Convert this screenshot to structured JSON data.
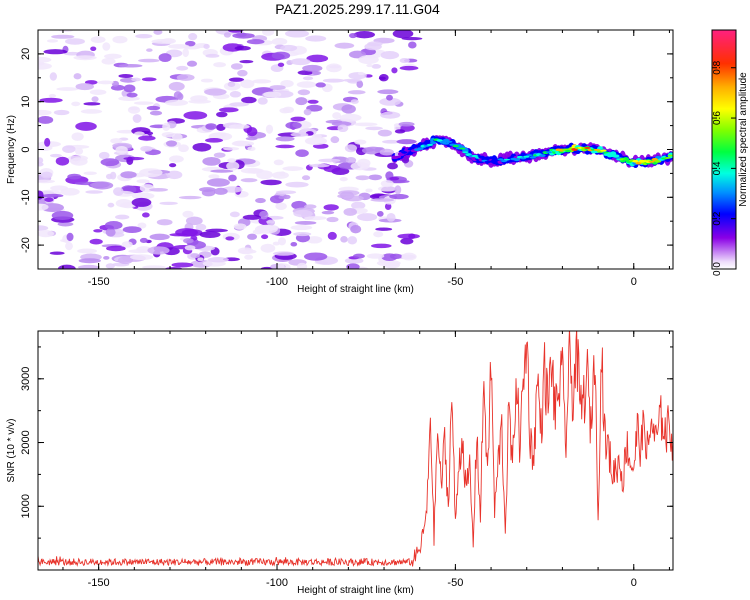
{
  "title": "PAZ1.2025.299.17.11.G04",
  "chart_data": [
    {
      "type": "heatmap",
      "xlabel": "Height of straight line (km)",
      "ylabel": "Frequency (Hz)",
      "xlim": [
        -167,
        11
      ],
      "ylim": [
        -25,
        25
      ],
      "xticks": [
        "-150",
        "-100",
        "-50",
        "0"
      ],
      "xtick_values": [
        -150,
        -100,
        -50,
        0
      ],
      "yticks": [
        "-20",
        "-10",
        "0",
        "10",
        "20"
      ],
      "ytick_values": [
        -20,
        -10,
        0,
        10,
        20
      ],
      "colorbar": {
        "label": "Normalized spectral amplitude",
        "range": [
          0,
          0.95
        ],
        "ticks": [
          "0.0",
          "0.2",
          "0.4",
          "0.6",
          "0.8"
        ],
        "tick_values": [
          0,
          0.2,
          0.4,
          0.6,
          0.8
        ]
      },
      "noise_region_x": [
        -167,
        -62
      ],
      "signal_track": {
        "x": [
          -67,
          -60,
          -55,
          -50,
          -45,
          -40,
          -35,
          -30,
          -25,
          -20,
          -15,
          -10,
          -5,
          0,
          5,
          11
        ],
        "freq": [
          -1.5,
          0.5,
          2.0,
          1.0,
          -1.5,
          -2.5,
          -2.0,
          -1.5,
          -0.8,
          0.0,
          0.2,
          0.0,
          -1.5,
          -2.8,
          -2.5,
          -1.5
        ],
        "amplitude": [
          0.2,
          0.35,
          0.45,
          0.55,
          0.4,
          0.35,
          0.4,
          0.45,
          0.5,
          0.75,
          0.85,
          0.7,
          0.55,
          0.75,
          0.7,
          0.5
        ]
      }
    },
    {
      "type": "line",
      "xlabel": "Height of straight line (km)",
      "ylabel": "SNR (10 * v/v)",
      "xlim": [
        -167,
        11
      ],
      "ylim": [
        0,
        3750
      ],
      "xticks": [
        "-150",
        "-100",
        "-50",
        "0"
      ],
      "xtick_values": [
        -150,
        -100,
        -50,
        0
      ],
      "yticks": [
        "1000",
        "2000",
        "3000"
      ],
      "ytick_values": [
        1000,
        2000,
        3000
      ],
      "color": "#e8332b",
      "series": [
        {
          "name": "SNR",
          "x": [
            -167,
            -150,
            -130,
            -110,
            -90,
            -70,
            -62,
            -60,
            -58,
            -57,
            -56,
            -55,
            -54,
            -53,
            -52,
            -51,
            -50,
            -49,
            -48,
            -47,
            -46,
            -45,
            -44,
            -43,
            -42,
            -41,
            -40,
            -39,
            -38,
            -37,
            -36,
            -35,
            -34,
            -33,
            -32,
            -31,
            -30,
            -29,
            -28,
            -27,
            -26,
            -25,
            -24,
            -23,
            -22,
            -21,
            -20,
            -19,
            -18,
            -17,
            -16,
            -15,
            -14,
            -13,
            -12,
            -11,
            -10,
            -9,
            -8,
            -7,
            -6,
            -5,
            -4,
            -3,
            -2,
            -1,
            0,
            1,
            2,
            3,
            4,
            5,
            6,
            7,
            8,
            9,
            10,
            11
          ],
          "values": [
            130,
            140,
            150,
            120,
            130,
            140,
            160,
            300,
            900,
            2500,
            500,
            2200,
            1300,
            2000,
            1000,
            2800,
            700,
            1700,
            2100,
            1200,
            1600,
            400,
            2200,
            800,
            3100,
            1400,
            3300,
            900,
            1700,
            2200,
            600,
            2600,
            1500,
            3100,
            2000,
            2800,
            3700,
            2000,
            1800,
            3000,
            2200,
            3100,
            2600,
            3300,
            2400,
            2900,
            3000,
            2000,
            3300,
            2700,
            3500,
            2500,
            2700,
            3000,
            2200,
            3500,
            900,
            3400,
            2000,
            1900,
            1500,
            1600,
            1700,
            1400,
            2000,
            1700,
            1600,
            2200,
            1900,
            2300,
            1800,
            2400,
            2000,
            2200,
            2450,
            2100,
            2300,
            2000
          ]
        }
      ]
    }
  ]
}
